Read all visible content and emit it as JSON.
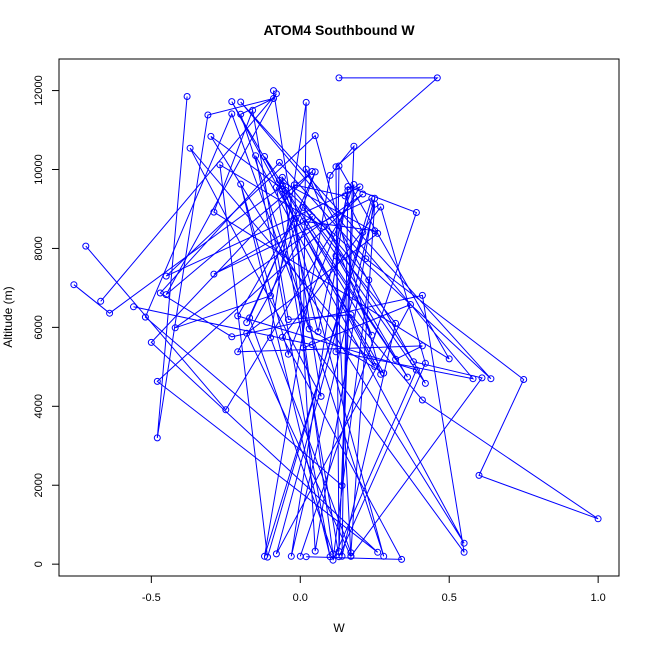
{
  "chart_data": {
    "type": "line",
    "title": "ATOM4 Southbound W",
    "xlabel": "W",
    "ylabel": "Altitude (m)",
    "xlim": [
      -0.81,
      1.07
    ],
    "ylim": [
      -300,
      12800
    ],
    "x_ticks": [
      -0.5,
      0.0,
      0.5,
      1.0
    ],
    "x_tick_labels": [
      "-0.5",
      "0.0",
      "0.5",
      "1.0"
    ],
    "y_ticks": [
      0,
      2000,
      4000,
      6000,
      8000,
      10000,
      12000
    ],
    "y_tick_labels": [
      "0",
      "2000",
      "4000",
      "6000",
      "8000",
      "10000",
      "12000"
    ],
    "grid": false,
    "legend": "none",
    "series_color": "#0000ff",
    "series": [
      {
        "x": [
          0.13,
          0.46,
          0.12,
          0.13,
          0.18,
          0.1,
          -0.12,
          0.25,
          0.05,
          -0.02,
          0.15,
          0.21,
          -0.08,
          0.37,
          0.01,
          0.02,
          -0.1,
          0.17,
          0.25,
          -0.03,
          0.16,
          0.39,
          0.0
        ],
        "y": [
          12320,
          12320,
          10070,
          320,
          10590,
          9850,
          200,
          9270,
          330,
          9610,
          9330,
          8410,
          260,
          6580,
          5480,
          11700,
          5740,
          290,
          9120,
          200,
          9570,
          8910,
          200
        ]
      },
      {
        "x": [
          -0.09,
          0.07,
          -0.37,
          0.25,
          -0.23,
          -0.06,
          -0.3,
          0.55,
          -0.15,
          0.1,
          -0.2,
          -0.04,
          0.18,
          0.14,
          -0.52,
          -0.23,
          0.03,
          0.28,
          -0.08,
          0.13,
          0.42,
          0.27,
          -0.06,
          0.34,
          0.02
        ],
        "y": [
          12000,
          4250,
          10540,
          5010,
          11720,
          9510,
          10840,
          530,
          10350,
          190,
          9630,
          5320,
          9620,
          1990,
          6260,
          11410,
          5960,
          4840,
          9550,
          190,
          5090,
          9050,
          5750,
          120,
          190
        ]
      },
      {
        "x": [
          -0.38,
          -0.48,
          -0.31,
          -0.09,
          -0.2,
          0.28,
          -0.05,
          0.24,
          0.02,
          0.42,
          0.01,
          0.32,
          0.14,
          0.16,
          0.06,
          -0.07,
          0.26,
          -0.18,
          0.17
        ],
        "y": [
          11850,
          3200,
          11380,
          11800,
          11400,
          200,
          9470,
          5800,
          10010,
          4580,
          9040,
          6100,
          200,
          9470,
          5890,
          9730,
          8380,
          5850,
          200
        ]
      },
      {
        "x": [
          -0.72,
          -0.25,
          0.2,
          -0.45,
          0.05,
          0.27,
          -0.12,
          0.36,
          0.12,
          0.17,
          0.61,
          0.38,
          0.08,
          -0.27,
          -0.11,
          0.24,
          -0.29,
          0.04,
          -0.21,
          0.41,
          0.32,
          0.01,
          0.25
        ],
        "y": [
          8060,
          3910,
          9560,
          7300,
          10860,
          4810,
          10330,
          4740,
          7810,
          200,
          4720,
          5130,
          8550,
          10120,
          180,
          9270,
          7350,
          8800,
          5380,
          5530,
          5190,
          8690,
          8450
        ]
      },
      {
        "x": [
          -0.76,
          -0.64,
          -0.06,
          0.64,
          -0.2,
          0.58,
          0.12,
          0.13,
          0.5,
          -0.29,
          -0.16,
          -0.04,
          0.17,
          0.41,
          1.0,
          0.6,
          0.75,
          0.22,
          -0.07,
          -0.47,
          -0.23,
          0.41,
          0.55,
          0.04,
          -0.56
        ],
        "y": [
          7080,
          6360,
          9580,
          4700,
          11710,
          4700,
          5380,
          10090,
          5200,
          8920,
          11500,
          6200,
          6320,
          4160,
          1150,
          2250,
          4680,
          7740,
          10180,
          6870,
          5760,
          6810,
          300,
          5560,
          6520
        ]
      },
      {
        "x": [
          -0.67,
          -0.08,
          -0.45,
          0.04,
          -0.5,
          0.26,
          -0.48,
          0.21,
          -0.42,
          -0.1,
          0.05,
          -0.17,
          0.11,
          -0.06,
          0.23,
          0.11,
          0.39,
          -0.21,
          -0.02,
          -0.18
        ],
        "y": [
          6660,
          11920,
          6830,
          9950,
          5620,
          300,
          4630,
          9380,
          5990,
          6800,
          9940,
          6240,
          260,
          9800,
          7200,
          100,
          4920,
          6290,
          8760,
          6120
        ]
      }
    ]
  }
}
